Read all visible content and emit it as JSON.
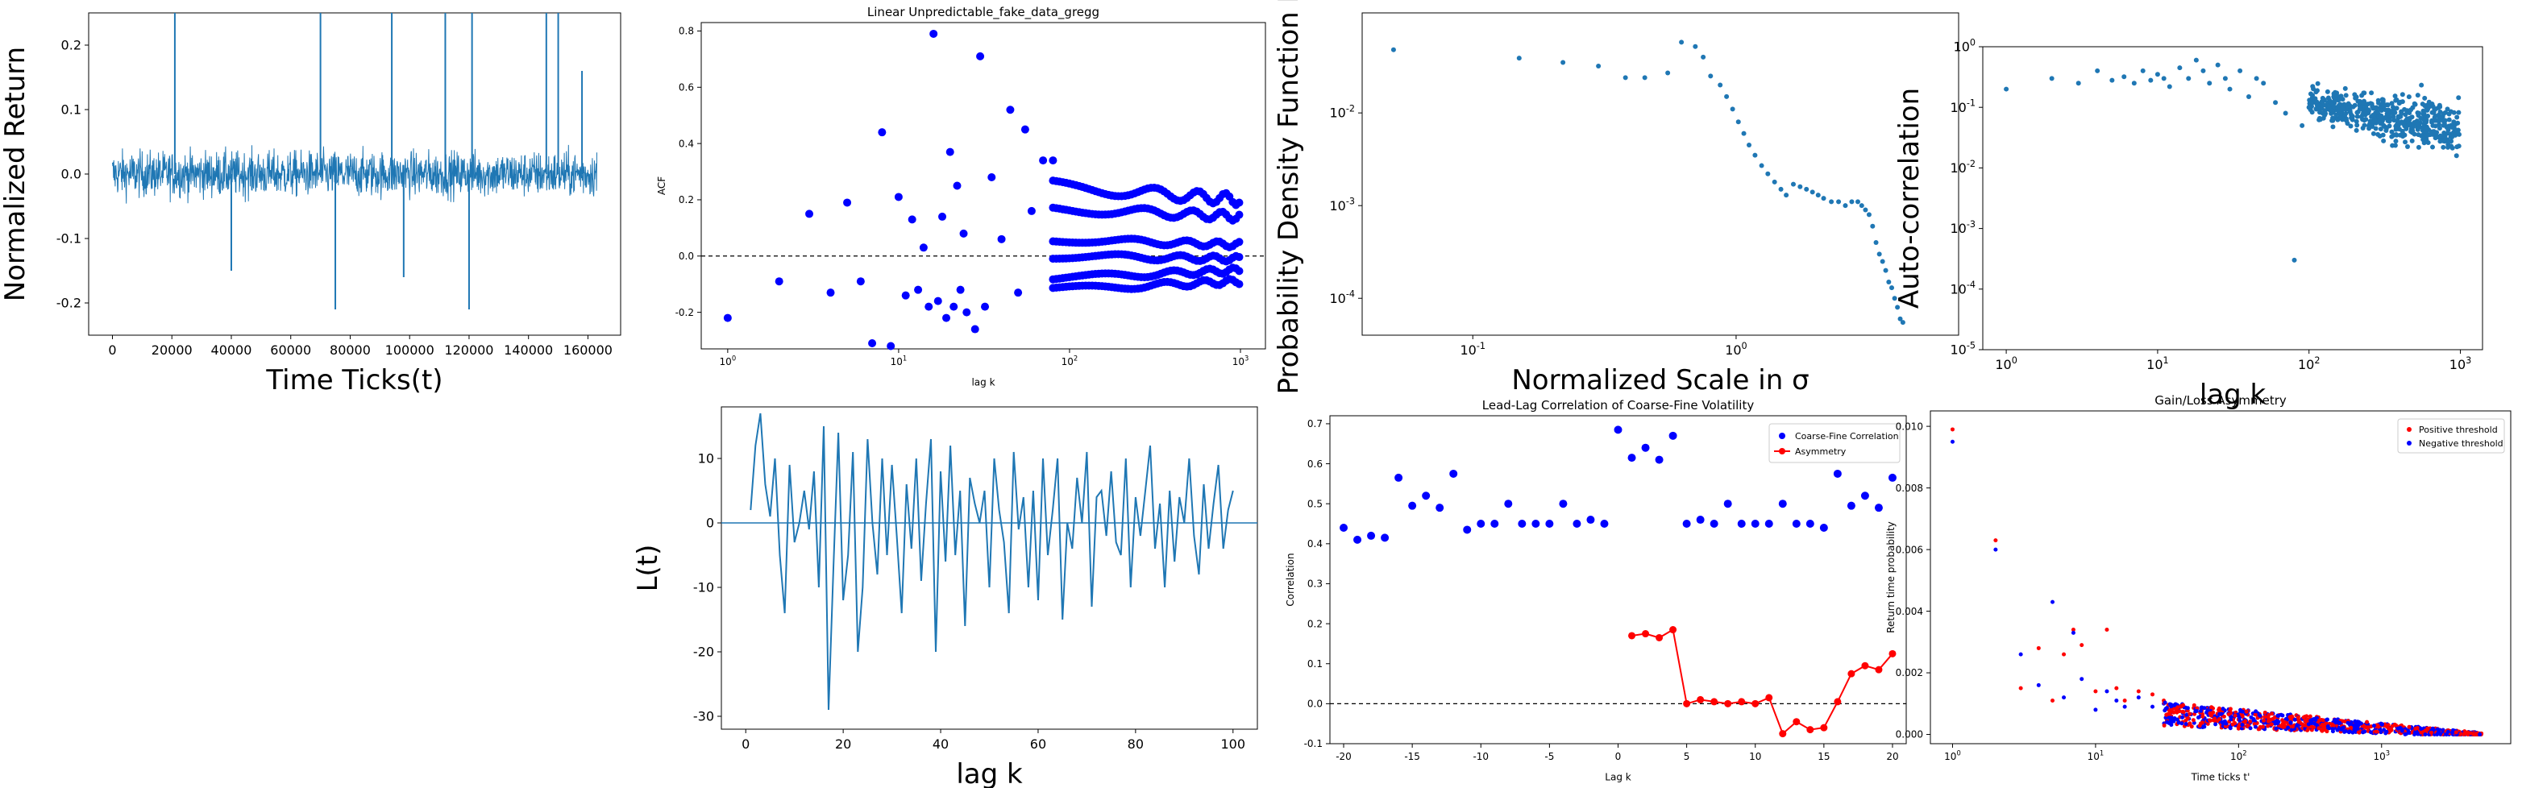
{
  "figure": {
    "colors": {
      "blue_line": "#1f77b4",
      "blue_dot": "#0000ff",
      "red": "#ff0000",
      "tab_blue": "#1f77b4"
    }
  },
  "chart_data": [
    {
      "id": "returns",
      "type": "line",
      "title": "",
      "xlabel": "Time Ticks(t)",
      "ylabel": "Normalized Return",
      "xlim": [
        -8000,
        171000
      ],
      "ylim": [
        -0.25,
        0.25
      ],
      "xticks": [
        0,
        20000,
        40000,
        60000,
        80000,
        100000,
        120000,
        140000,
        160000
      ],
      "yticks": [
        -0.2,
        -0.1,
        0.0,
        0.1,
        0.2
      ],
      "note_series": "dense noisy return series of ~163000 ticks; band roughly +/-0.06 with spikes",
      "spikes": [
        [
          21000,
          0.25
        ],
        [
          70000,
          0.25
        ],
        [
          75000,
          -0.21
        ],
        [
          94000,
          0.25
        ],
        [
          112000,
          0.25
        ],
        [
          120000,
          -0.21
        ],
        [
          121000,
          0.25
        ],
        [
          146000,
          0.25
        ],
        [
          150000,
          0.25
        ],
        [
          40000,
          -0.15
        ],
        [
          98000,
          -0.16
        ],
        [
          158000,
          0.16
        ]
      ],
      "color": "#1f77b4"
    },
    {
      "id": "acf",
      "type": "scatter",
      "title": "Linear Unpredictable_fake_data_gregg",
      "xlabel": "lag k",
      "ylabel": "ACF",
      "xscale": "log",
      "xlim": [
        0.7,
        1400
      ],
      "ylim": [
        -0.33,
        0.83
      ],
      "xticks": [
        "10^0",
        "10^1",
        "10^2",
        "10^3"
      ],
      "yticks": [
        -0.2,
        0.0,
        0.2,
        0.4,
        0.6,
        0.8
      ],
      "hline": 0,
      "points": [
        [
          1,
          -0.22
        ],
        [
          2,
          -0.09
        ],
        [
          3,
          0.15
        ],
        [
          4,
          -0.13
        ],
        [
          5,
          0.19
        ],
        [
          6,
          -0.09
        ],
        [
          7,
          -0.31
        ],
        [
          8,
          0.44
        ],
        [
          9,
          -0.32
        ],
        [
          10,
          0.21
        ],
        [
          11,
          -0.14
        ],
        [
          12,
          0.13
        ],
        [
          13,
          -0.12
        ],
        [
          14,
          0.03
        ],
        [
          15,
          -0.18
        ],
        [
          16,
          0.79
        ],
        [
          17,
          -0.16
        ],
        [
          18,
          0.14
        ],
        [
          19,
          -0.22
        ],
        [
          20,
          0.37
        ],
        [
          21,
          -0.18
        ],
        [
          22,
          0.25
        ],
        [
          23,
          -0.12
        ],
        [
          24,
          0.08
        ],
        [
          25,
          -0.2
        ],
        [
          28,
          -0.26
        ],
        [
          30,
          0.71
        ],
        [
          32,
          -0.18
        ],
        [
          35,
          0.28
        ],
        [
          40,
          0.06
        ],
        [
          45,
          0.52
        ],
        [
          50,
          -0.13
        ],
        [
          55,
          0.45
        ],
        [
          60,
          0.16
        ],
        [
          70,
          0.34
        ],
        [
          80,
          0.34
        ]
      ],
      "bands": [
        {
          "label": "",
          "start": 0.25,
          "end": 0.2,
          "wiggle": 0.02
        },
        {
          "label": "",
          "start": 0.17,
          "end": 0.14,
          "wiggle": 0.015
        },
        {
          "label": "",
          "start": 0.06,
          "end": 0.04,
          "wiggle": 0.01
        },
        {
          "label": "",
          "start": 0.0,
          "end": -0.01,
          "wiggle": 0.01
        },
        {
          "label": "",
          "start": -0.08,
          "end": -0.05,
          "wiggle": 0.01
        },
        {
          "label": "",
          "start": -0.12,
          "end": -0.09,
          "wiggle": 0.01
        }
      ],
      "color": "#0000ff"
    },
    {
      "id": "pdf",
      "type": "scatter",
      "title": "",
      "xlabel": "Normalized Scale in σ",
      "ylabel": "Probability Density Function P(r)",
      "xscale": "log",
      "yscale": "log",
      "xlim": [
        0.038,
        7
      ],
      "ylim": [
        4e-05,
        0.12
      ],
      "xticks": [
        "10^-1",
        "10^0"
      ],
      "yticks": [
        "10^-4",
        "10^-3",
        "10^-2"
      ],
      "points": [
        [
          0.05,
          0.048
        ],
        [
          0.15,
          0.039
        ],
        [
          0.22,
          0.035
        ],
        [
          0.3,
          0.032
        ],
        [
          0.38,
          0.024
        ],
        [
          0.45,
          0.024
        ],
        [
          0.55,
          0.027
        ],
        [
          0.62,
          0.058
        ],
        [
          0.7,
          0.052
        ],
        [
          0.75,
          0.04
        ],
        [
          0.8,
          0.025
        ],
        [
          0.87,
          0.02
        ],
        [
          0.92,
          0.015
        ],
        [
          0.97,
          0.011
        ],
        [
          1.02,
          0.008
        ],
        [
          1.07,
          0.006
        ],
        [
          1.12,
          0.0045
        ],
        [
          1.18,
          0.0035
        ],
        [
          1.25,
          0.0027
        ],
        [
          1.32,
          0.0022
        ],
        [
          1.4,
          0.0018
        ],
        [
          1.48,
          0.0015
        ],
        [
          1.55,
          0.0013
        ],
        [
          1.65,
          0.0017
        ],
        [
          1.75,
          0.0016
        ],
        [
          1.85,
          0.0015
        ],
        [
          1.95,
          0.0014
        ],
        [
          2.05,
          0.0013
        ],
        [
          2.15,
          0.0012
        ],
        [
          2.3,
          0.0011
        ],
        [
          2.45,
          0.0011
        ],
        [
          2.6,
          0.001
        ],
        [
          2.75,
          0.0011
        ],
        [
          2.9,
          0.0011
        ],
        [
          3.0,
          0.001
        ],
        [
          3.1,
          0.0009
        ],
        [
          3.2,
          0.0008
        ],
        [
          3.3,
          0.0006
        ],
        [
          3.4,
          0.0004
        ],
        [
          3.5,
          0.0003
        ],
        [
          3.6,
          0.00025
        ],
        [
          3.7,
          0.0002
        ],
        [
          3.8,
          0.00015
        ],
        [
          3.9,
          0.00013
        ],
        [
          4.0,
          0.0001
        ],
        [
          4.1,
          8e-05
        ],
        [
          4.2,
          6e-05
        ],
        [
          4.3,
          5.5e-05
        ]
      ],
      "color": "#1f77b4"
    },
    {
      "id": "autocorr",
      "type": "scatter",
      "title": "",
      "xlabel": "lag k",
      "ylabel": "Auto-correlation",
      "xscale": "log",
      "yscale": "log",
      "xlim": [
        0.7,
        1400
      ],
      "ylim": [
        1e-05,
        1
      ],
      "xticks": [
        "10^0",
        "10^1",
        "10^2",
        "10^3"
      ],
      "yticks": [
        "10^-5",
        "10^-4",
        "10^-3",
        "10^-2",
        "10^-1",
        "10^0"
      ],
      "points": [
        [
          1,
          0.2
        ],
        [
          2,
          0.3
        ],
        [
          3,
          0.25
        ],
        [
          4,
          0.4
        ],
        [
          5,
          0.28
        ],
        [
          6,
          0.32
        ],
        [
          7,
          0.25
        ],
        [
          8,
          0.4
        ],
        [
          9,
          0.28
        ],
        [
          10,
          0.35
        ],
        [
          11,
          0.3
        ],
        [
          12,
          0.22
        ],
        [
          14,
          0.45
        ],
        [
          16,
          0.3
        ],
        [
          18,
          0.6
        ],
        [
          20,
          0.4
        ],
        [
          22,
          0.25
        ],
        [
          25,
          0.5
        ],
        [
          28,
          0.3
        ],
        [
          30,
          0.2
        ],
        [
          35,
          0.4
        ],
        [
          40,
          0.15
        ],
        [
          45,
          0.3
        ],
        [
          50,
          0.25
        ],
        [
          60,
          0.12
        ],
        [
          70,
          0.08
        ],
        [
          80,
          0.0003
        ],
        [
          90,
          0.05
        ],
        [
          100,
          0.1
        ]
      ],
      "cloud": {
        "xmin": 100,
        "xmax": 1000,
        "ymin_log": -3.5,
        "ymax_log": -0.5
      },
      "color": "#1f77b4"
    },
    {
      "id": "leverage",
      "type": "line",
      "title": "",
      "xlabel": "lag k",
      "ylabel": "L(t)",
      "xlim": [
        -5,
        105
      ],
      "ylim": [
        -32,
        18
      ],
      "xticks": [
        0,
        20,
        40,
        60,
        80,
        100
      ],
      "yticks": [
        -30,
        -20,
        -10,
        0,
        10
      ],
      "hline": 0,
      "values": [
        2,
        12,
        17,
        6,
        1,
        10,
        -5,
        -14,
        9,
        -3,
        0,
        5,
        -1,
        8,
        -10,
        15,
        -29,
        -7,
        14,
        -12,
        -5,
        11,
        -20,
        -10,
        13,
        0,
        -8,
        10,
        -5,
        9,
        -2,
        -14,
        6,
        -4,
        10,
        -9,
        3,
        13,
        -20,
        8,
        -6,
        12,
        -5,
        5,
        -16,
        7,
        3,
        0,
        5,
        -10,
        10,
        2,
        -3,
        -14,
        11,
        -1,
        4,
        -10,
        5,
        -12,
        10,
        -5,
        2,
        10,
        -15,
        0,
        -4,
        7,
        0,
        11,
        -13,
        4,
        5,
        -2,
        8,
        -3,
        -5,
        10,
        -10,
        4,
        -2,
        5,
        12,
        -4,
        3,
        -10,
        5,
        -6,
        4,
        0,
        10,
        -2,
        -8,
        6,
        -4,
        3,
        9,
        -4,
        2,
        5
      ],
      "color": "#1f77b4"
    },
    {
      "id": "leadlag",
      "type": "scatter",
      "title": "Lead-Lag Correlation of Coarse-Fine Volatility",
      "xlabel": "Lag k",
      "ylabel": "Correlation",
      "xlim": [
        -21,
        21
      ],
      "ylim": [
        -0.1,
        0.72
      ],
      "xticks": [
        -20,
        -15,
        -10,
        -5,
        0,
        5,
        10,
        15,
        20
      ],
      "yticks": [
        -0.1,
        0.0,
        0.1,
        0.2,
        0.3,
        0.4,
        0.5,
        0.6,
        0.7
      ],
      "hline": 0,
      "legend": [
        "Coarse-Fine Correlation",
        "Asymmetry"
      ],
      "legend_position": "top-right",
      "series": [
        {
          "name": "Coarse-Fine Correlation",
          "style": "dots",
          "color": "#0000ff",
          "x": [
            -20,
            -19,
            -18,
            -17,
            -16,
            -15,
            -14,
            -13,
            -12,
            -11,
            -10,
            -9,
            -8,
            -7,
            -6,
            -5,
            -4,
            -3,
            -2,
            -1,
            0,
            1,
            2,
            3,
            4,
            5,
            6,
            7,
            8,
            9,
            10,
            11,
            12,
            13,
            14,
            15,
            16,
            17,
            18,
            19,
            20
          ],
          "values": [
            0.44,
            0.41,
            0.42,
            0.415,
            0.565,
            0.495,
            0.52,
            0.49,
            0.575,
            0.435,
            0.45,
            0.45,
            0.5,
            0.45,
            0.45,
            0.45,
            0.5,
            0.45,
            0.46,
            0.45,
            0.685,
            0.615,
            0.64,
            0.61,
            0.67,
            0.45,
            0.46,
            0.45,
            0.5,
            0.45,
            0.45,
            0.45,
            0.5,
            0.45,
            0.45,
            0.44,
            0.575,
            0.495,
            0.52,
            0.49,
            0.565
          ]
        },
        {
          "name": "Asymmetry",
          "style": "line-dots",
          "color": "#ff0000",
          "x": [
            1,
            2,
            3,
            4,
            5,
            6,
            7,
            8,
            9,
            10,
            11,
            12,
            13,
            14,
            15,
            16,
            17,
            18,
            19,
            20
          ],
          "values": [
            0.17,
            0.175,
            0.165,
            0.185,
            0.0,
            0.01,
            0.005,
            0.0,
            0.005,
            0.0,
            0.015,
            -0.075,
            -0.045,
            -0.065,
            -0.06,
            0.005,
            0.075,
            0.095,
            0.085,
            0.125
          ]
        }
      ]
    },
    {
      "id": "gainloss",
      "type": "scatter",
      "title": "Gain/Loss Asymmetry",
      "xlabel": "Time ticks t'",
      "ylabel": "Return time probability",
      "xscale": "log",
      "xlim": [
        0.7,
        8000
      ],
      "ylim": [
        -0.0003,
        0.0105
      ],
      "xticks": [
        "10^0",
        "10^1",
        "10^2",
        "10^3"
      ],
      "yticks": [
        0.0,
        0.002,
        0.004,
        0.006,
        0.008,
        0.01
      ],
      "legend": [
        "Positive threshold",
        "Negative threshold"
      ],
      "legend_position": "top-right",
      "series": [
        {
          "name": "Positive threshold",
          "color": "#ff0000",
          "points": [
            [
              1,
              0.0099
            ],
            [
              2,
              0.0063
            ],
            [
              3,
              0.0015
            ],
            [
              4,
              0.0028
            ],
            [
              5,
              0.0011
            ],
            [
              6,
              0.0026
            ],
            [
              7,
              0.0034
            ],
            [
              8,
              0.0029
            ],
            [
              10,
              0.0014
            ],
            [
              12,
              0.0034
            ],
            [
              14,
              0.0015
            ],
            [
              16,
              0.0011
            ],
            [
              20,
              0.0014
            ],
            [
              25,
              0.0013
            ],
            [
              30,
              0.0011
            ]
          ]
        },
        {
          "name": "Negative threshold",
          "color": "#0000ff",
          "points": [
            [
              1,
              0.0095
            ],
            [
              2,
              0.006
            ],
            [
              3,
              0.0026
            ],
            [
              4,
              0.0016
            ],
            [
              5,
              0.0043
            ],
            [
              6,
              0.0012
            ],
            [
              7,
              0.0033
            ],
            [
              8,
              0.0018
            ],
            [
              10,
              0.0008
            ],
            [
              12,
              0.0014
            ],
            [
              14,
              0.0011
            ],
            [
              16,
              0.0009
            ],
            [
              20,
              0.0012
            ],
            [
              25,
              0.0009
            ],
            [
              30,
              0.001
            ]
          ]
        }
      ],
      "cloud": {
        "xmin": 30,
        "xmax": 5000,
        "ymax_start": 0.0012,
        "ymax_end": 0.0002
      }
    }
  ]
}
